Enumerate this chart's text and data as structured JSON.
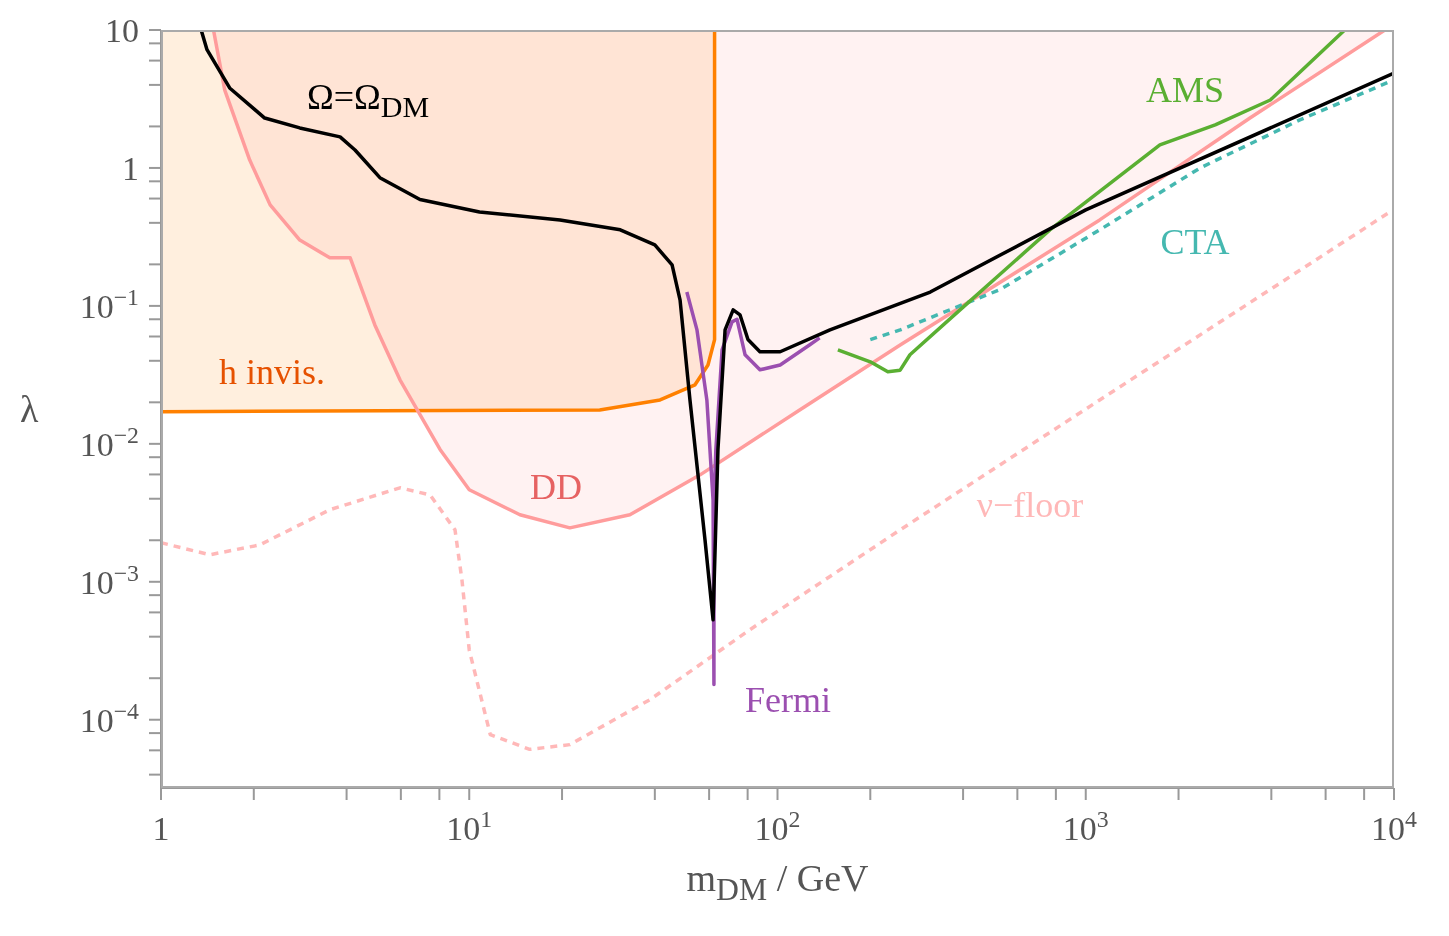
{
  "chart_data": {
    "type": "line",
    "xlabel": "m$_{DM}$ / GeV",
    "ylabel": "λ",
    "log": "xy",
    "legend": false,
    "marker": "none",
    "xlim": [
      1,
      10000
    ],
    "ylim": [
      3.2e-05,
      10
    ],
    "xticks": [
      1,
      {
        "value": 2,
        "label": null
      },
      {
        "value": 4,
        "label": null
      },
      {
        "value": 6,
        "label": null
      },
      {
        "value": 8,
        "label": null
      },
      {
        "value": 10,
        "label": "10$^{1}$"
      },
      {
        "value": 20,
        "label": null
      },
      {
        "value": 40,
        "label": null
      },
      {
        "value": 60,
        "label": null
      },
      {
        "value": 80,
        "label": null
      },
      {
        "value": 100,
        "label": "10$^{2}$"
      },
      {
        "value": 200,
        "label": null
      },
      {
        "value": 400,
        "label": null
      },
      {
        "value": 600,
        "label": null
      },
      {
        "value": 800,
        "label": null
      },
      {
        "value": 1000,
        "label": "10$^{3}$"
      },
      {
        "value": 2000,
        "label": null
      },
      {
        "value": 4000,
        "label": null
      },
      {
        "value": 6000,
        "label": null
      },
      {
        "value": 8000,
        "label": null
      },
      {
        "value": 10000,
        "label": "10$^{4}$"
      }
    ],
    "yticks": [
      {
        "value": 4e-05,
        "label": null
      },
      {
        "value": 6e-05,
        "label": null
      },
      {
        "value": 8e-05,
        "label": null
      },
      {
        "value": 0.0001,
        "label": "10$^{−4}$"
      },
      {
        "value": 0.0002,
        "label": null
      },
      {
        "value": 0.0004,
        "label": null
      },
      {
        "value": 0.0006,
        "label": null
      },
      {
        "value": 0.0008,
        "label": null
      },
      {
        "value": 0.001,
        "label": "10$^{−3}$"
      },
      {
        "value": 0.002,
        "label": null
      },
      {
        "value": 0.004,
        "label": null
      },
      {
        "value": 0.006,
        "label": null
      },
      {
        "value": 0.008,
        "label": null
      },
      {
        "value": 0.01,
        "label": "10$^{−2}$"
      },
      {
        "value": 0.02,
        "label": null
      },
      {
        "value": 0.04,
        "label": null
      },
      {
        "value": 0.06,
        "label": null
      },
      {
        "value": 0.08,
        "label": null
      },
      {
        "value": 0.1,
        "label": "10$^{−1}$"
      },
      {
        "value": 0.2,
        "label": null
      },
      {
        "value": 0.4,
        "label": null
      },
      {
        "value": 0.6,
        "label": null
      },
      {
        "value": 0.8,
        "label": null
      },
      1,
      {
        "value": 2,
        "label": null
      },
      {
        "value": 4,
        "label": null
      },
      {
        "value": 6,
        "label": null
      },
      {
        "value": 8,
        "label": null
      },
      10
    ],
    "series": [
      {
        "name": "h invis.",
        "color": "#ff8000",
        "x": [
          1,
          26.5,
          41.6,
          54,
          59.5,
          62.5,
          62.5
        ],
        "values": [
          0.0171,
          0.0176,
          0.0208,
          0.0268,
          0.0373,
          0.057,
          10
        ],
        "lower": [
          0.0171,
          0.0176,
          0.0208,
          0.0268,
          0.0373,
          0.057,
          10
        ],
        "upper": [
          10,
          10,
          10,
          10,
          10,
          10,
          10
        ]
      },
      {
        "name": "DD",
        "color": "#ff9c9c",
        "x": [
          1.48,
          1.61,
          1.94,
          2.26,
          2.82,
          3.53,
          4.11,
          4.94,
          5.96,
          8.04,
          10,
          14.6,
          21.2,
          33.2,
          56.1,
          118,
          250,
          1110,
          3410,
          9340
        ],
        "values": [
          10,
          3.67,
          1.14,
          0.54,
          0.3,
          0.223,
          0.223,
          0.0728,
          0.0291,
          0.0091,
          0.00465,
          0.00306,
          0.00246,
          0.00306,
          0.00596,
          0.0176,
          0.052,
          0.42,
          2.3,
          10
        ],
        "lower": [
          10,
          3.67,
          1.14,
          0.54,
          0.3,
          0.223,
          0.223,
          0.0728,
          0.0291,
          0.0091,
          0.00465,
          0.00306,
          0.00246,
          0.00306,
          0.00596,
          0.0176,
          0.052,
          0.42,
          2.3,
          10
        ],
        "upper": [
          10,
          10,
          10,
          10,
          10,
          10,
          10,
          10,
          10,
          10,
          10,
          10,
          10,
          10,
          10,
          10,
          10,
          10,
          10,
          10
        ]
      },
      {
        "name": "ν−floor",
        "color": "#ffb8b8",
        "line_style": "dashed",
        "x": [
          1,
          1.44,
          2.09,
          3.53,
          5.96,
          7.46,
          8.99,
          9.47,
          10,
          11.7,
          15.7,
          21.2,
          38.6,
          81.4,
          250,
          1110,
          9700
        ],
        "values": [
          0.00192,
          0.00157,
          0.00185,
          0.00333,
          0.0048,
          0.00427,
          0.00238,
          0.00103,
          0.00032,
          7.8e-05,
          6.1e-05,
          6.6e-05,
          0.00014,
          0.00045,
          0.00238,
          0.0208,
          0.48
        ]
      },
      {
        "name": "CTA",
        "color": "#45b8b0",
        "line_style": "dashed",
        "x": [
          200,
          250,
          526,
          1110,
          2350,
          4950,
          10000
        ],
        "values": [
          0.057,
          0.067,
          0.131,
          0.356,
          1,
          2.23,
          4.35
        ]
      },
      {
        "name": "AMS",
        "color": "#5aaf32",
        "x": [
          157,
          200,
          228,
          250,
          269,
          391,
          765,
          1740,
          2630,
          3970,
          6920
        ],
        "values": [
          0.048,
          0.0393,
          0.0333,
          0.0342,
          0.0442,
          0.0935,
          0.356,
          1.47,
          2.05,
          3.11,
          10
        ]
      },
      {
        "name": "Fermi",
        "color": "#9b4fb0",
        "x": [
          50.8,
          54.8,
          59,
          61.8,
          62.2,
          62.2,
          63.1,
          66.1,
          71.2,
          73.9,
          78.5,
          87.7,
          102,
          127,
          137
        ],
        "values": [
          0.126,
          0.067,
          0.0208,
          0.0039,
          0.00018,
          0.0039,
          0.0091,
          0.048,
          0.0766,
          0.08,
          0.0442,
          0.0344,
          0.0373,
          0.052,
          0.0586
        ]
      },
      {
        "name": "Ω=Ω$_{DM}$",
        "color": "#000000",
        "x": [
          1.35,
          1.41,
          1.67,
          2.17,
          2.82,
          3.81,
          4.26,
          5.13,
          6.92,
          10.8,
          19.7,
          30.9,
          40,
          45.5,
          48.3,
          52,
          58.2,
          61.8,
          64.1,
          67.6,
          71.8,
          75.6,
          80.2,
          87.7,
          102,
          148,
          313,
          1000,
          10000
        ],
        "values": [
          10,
          7.2,
          3.8,
          2.3,
          1.95,
          1.68,
          1.35,
          0.85,
          0.59,
          0.48,
          0.42,
          0.356,
          0.277,
          0.198,
          0.11,
          0.0208,
          0.002,
          0.00053,
          0.0091,
          0.067,
          0.0935,
          0.086,
          0.057,
          0.0465,
          0.0465,
          0.067,
          0.126,
          0.497,
          4.87
        ]
      }
    ]
  }
}
